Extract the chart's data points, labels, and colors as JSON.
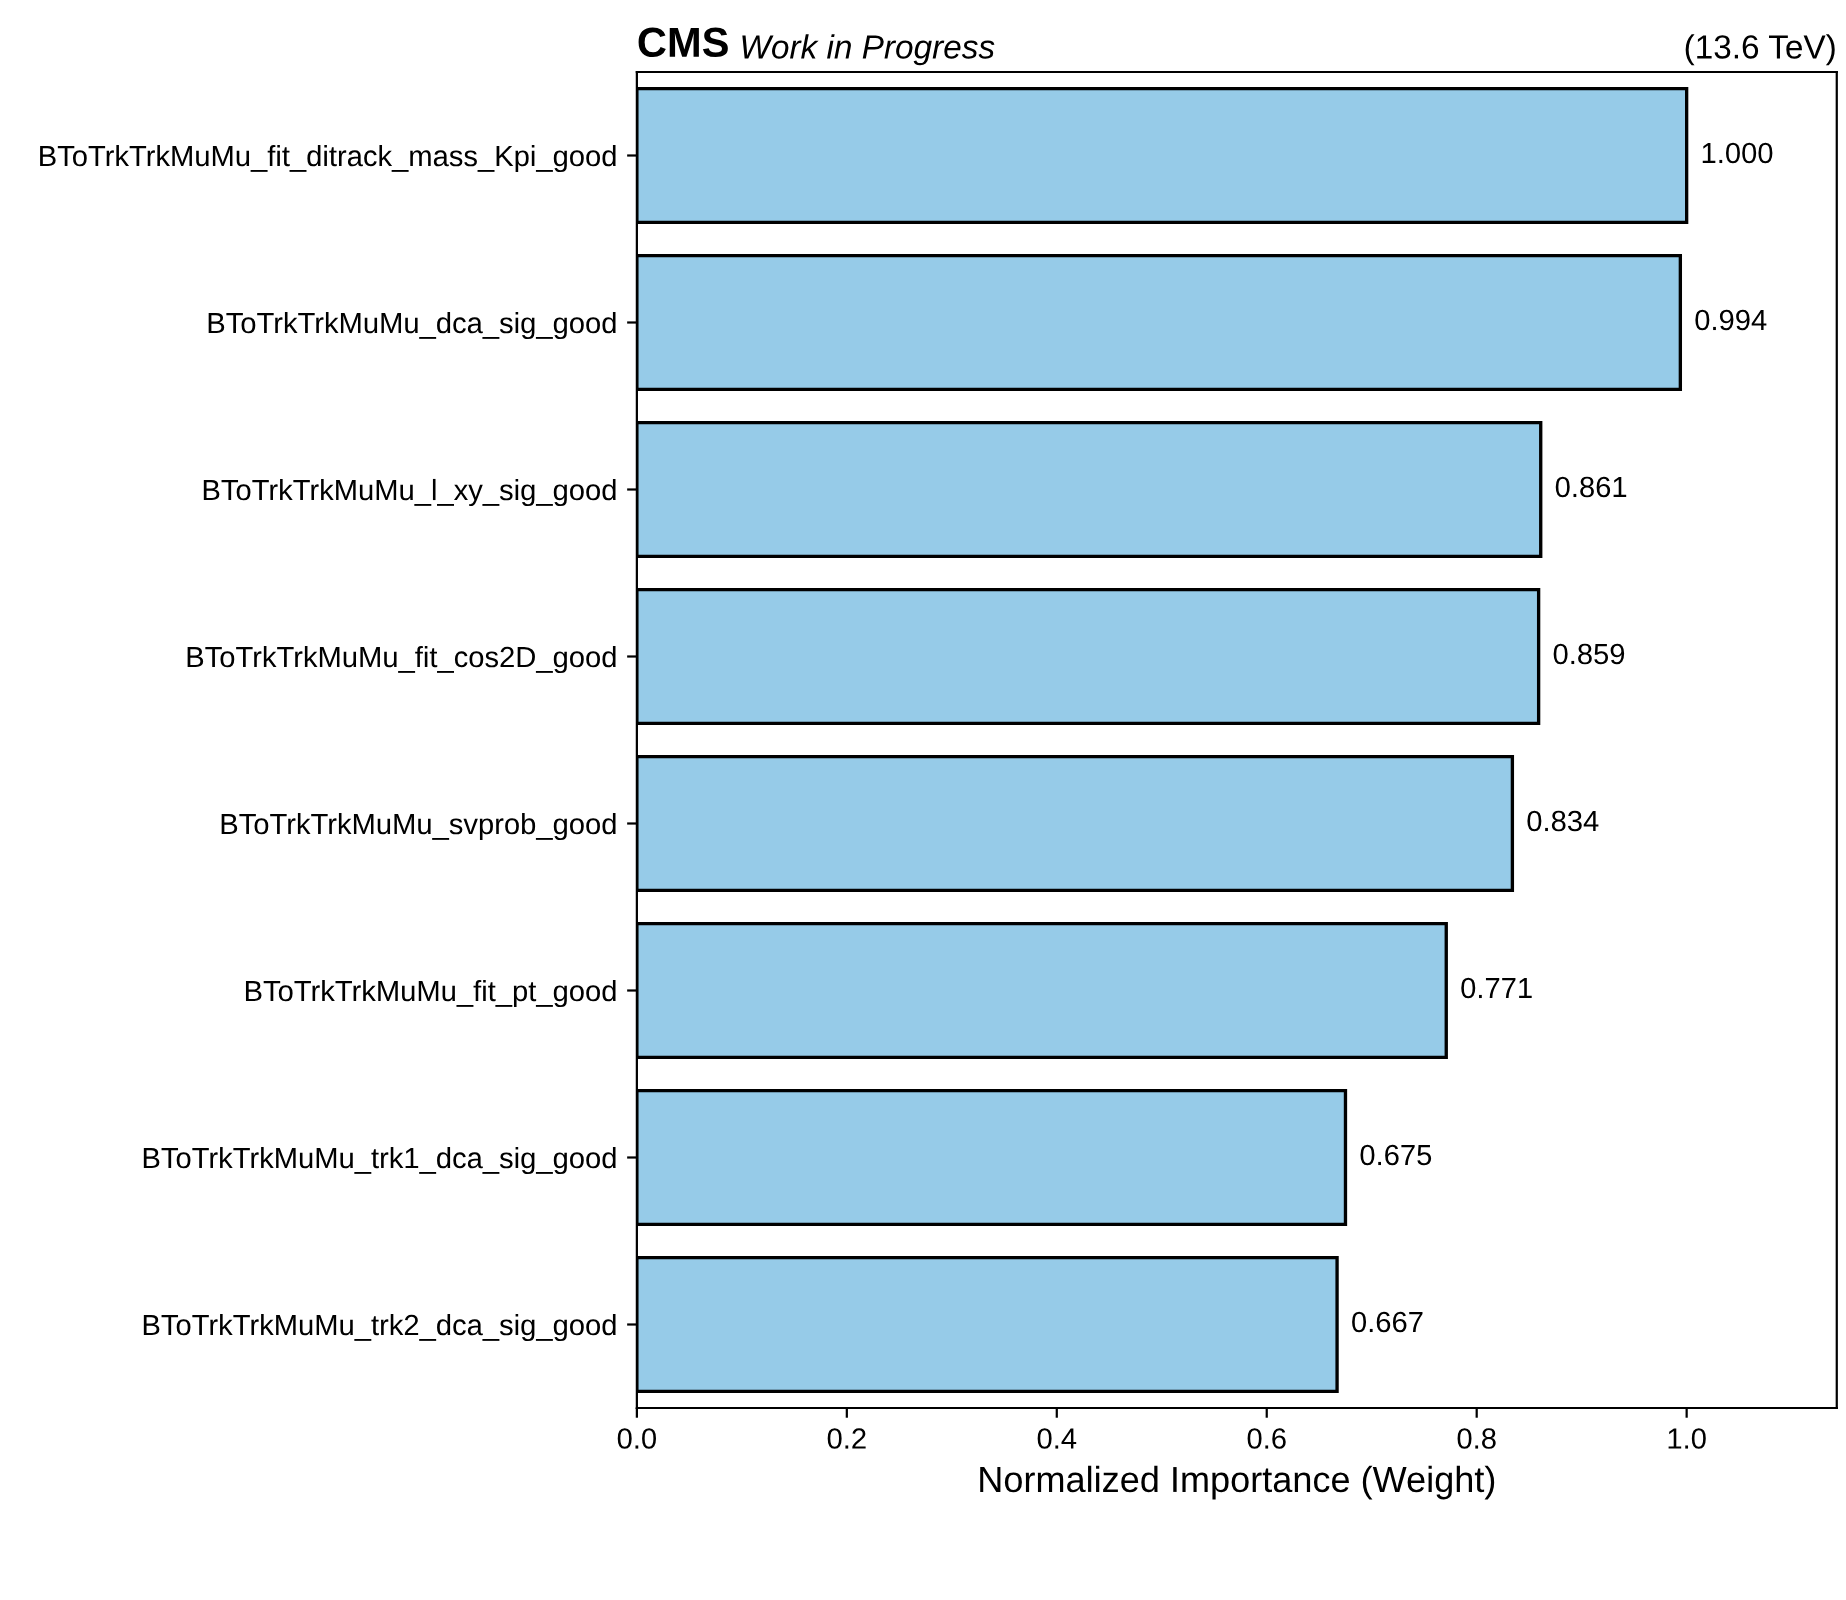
{
  "chart_data": {
    "type": "bar",
    "orientation": "horizontal",
    "title": "CMS",
    "subtitle": "Work in Progress",
    "annotations": [
      "(13.6 TeV)"
    ],
    "xlabel": "Normalized Importance (Weight)",
    "categories": [
      "BToTrkTrkMuMu_fit_ditrack_mass_Kpi_good",
      "BToTrkTrkMuMu_dca_sig_good",
      "BToTrkTrkMuMu_l_xy_sig_good",
      "BToTrkTrkMuMu_fit_cos2D_good",
      "BToTrkTrkMuMu_svprob_good",
      "BToTrkTrkMuMu_fit_pt_good",
      "BToTrkTrkMuMu_trk1_dca_sig_good",
      "BToTrkTrkMuMu_trk2_dca_sig_good"
    ],
    "values": [
      1.0,
      0.994,
      0.861,
      0.859,
      0.834,
      0.771,
      0.675,
      0.667
    ],
    "value_labels": [
      "1.000",
      "0.994",
      "0.861",
      "0.859",
      "0.834",
      "0.771",
      "0.675",
      "0.667"
    ],
    "color": "#96cbe8",
    "xlim": [
      0,
      1.143
    ],
    "xticks": [
      {
        "value": 0,
        "label": "0.0"
      },
      0.2,
      0.4,
      0.6,
      0.8,
      {
        "value": 1,
        "label": "1.0"
      }
    ],
    "grid": false,
    "legend": false
  }
}
